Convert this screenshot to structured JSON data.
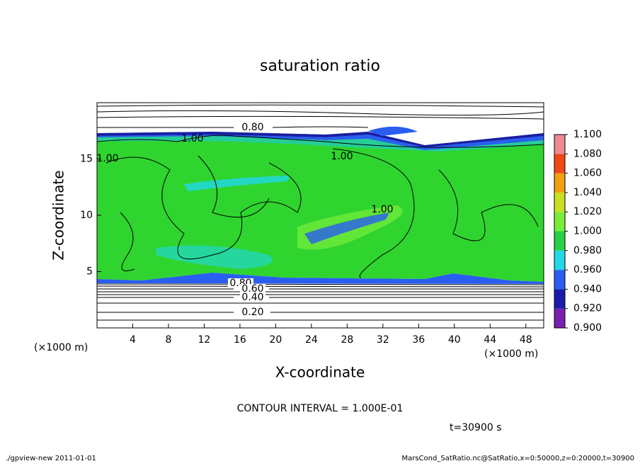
{
  "chart_data": {
    "type": "contour",
    "title": "saturation ratio",
    "xlabel": "X-coordinate",
    "ylabel": "Z-coordinate",
    "xunit": "(×1000 m)",
    "yunit": "(×1000 m)",
    "xlim": [
      0,
      50
    ],
    "ylim": [
      0,
      20
    ],
    "xticks": [
      4,
      8,
      12,
      16,
      20,
      24,
      28,
      32,
      36,
      40,
      44,
      48
    ],
    "yticks": [
      5,
      10,
      15
    ],
    "contour_labels": [
      "0.80",
      "1.00",
      "1.00",
      "1.00",
      "1.00",
      "0.80",
      "0.60",
      "0.40",
      "0.20"
    ],
    "contour_interval": "CONTOUR INTERVAL = 1.000E-01",
    "time_label": "t=30900 s",
    "colorbar": {
      "ticks": [
        {
          "value": 0.9,
          "label": "0.900"
        },
        {
          "value": 0.92,
          "label": "0.920"
        },
        {
          "value": 0.94,
          "label": "0.940"
        },
        {
          "value": 0.96,
          "label": "0.960"
        },
        {
          "value": 0.98,
          "label": "0.980"
        },
        {
          "value": 1.0,
          "label": "1.000"
        },
        {
          "value": 1.02,
          "label": "1.020"
        },
        {
          "value": 1.04,
          "label": "1.040"
        },
        {
          "value": 1.06,
          "label": "1.060"
        },
        {
          "value": 1.08,
          "label": "1.080"
        },
        {
          "value": 1.1,
          "label": "1.100"
        }
      ],
      "colors": [
        "#7a1fb0",
        "#1c1ca8",
        "#2a5ef0",
        "#20d8e8",
        "#28d048",
        "#78ee3a",
        "#c8e020",
        "#f0a010",
        "#f04818",
        "#f08890"
      ]
    },
    "footer_left": "./gpview-new   2011-01-01",
    "footer_right": "MarsCond_SatRatio.nc@SatRatio,x=0:50000,z=0:20000,t=30900"
  }
}
